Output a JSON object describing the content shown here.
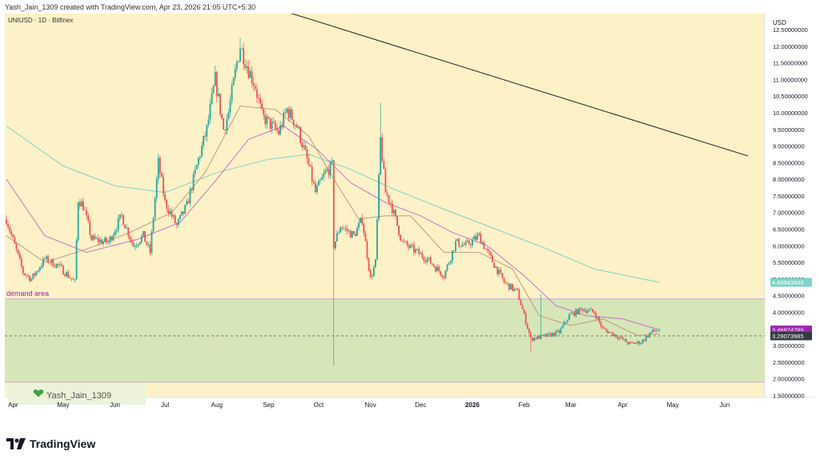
{
  "header": {
    "credit": "Yash_Jain_1309 created with TradingView.com, Apr 23, 2026 21:05 UTC+5:30"
  },
  "chart": {
    "symbol": "UNIUSD · 1D · Bitfinex",
    "currency": "USD",
    "zone_label": "demand area",
    "watermark": "Yash_Jain_1309",
    "colors": {
      "background": "#fdf1c7",
      "zone_fill": "#d6e6b8",
      "up": "#26a69a",
      "down": "#ef5350",
      "ma_fast": "#c49a7a",
      "ma_mid": "#c773c9",
      "ma_slow": "#7fd3c8",
      "trendline": "#333333",
      "zone_border": "#c9a7d8"
    }
  },
  "chart_data": {
    "type": "candlestick",
    "y_range": [
      1.3,
      12.8
    ],
    "x_range": [
      "2025-03-28",
      "2026-06-15"
    ],
    "x_ticks": [
      {
        "date": "2025-04-01",
        "label": "Apr"
      },
      {
        "date": "2025-05-01",
        "label": "May"
      },
      {
        "date": "2025-06-01",
        "label": "Jun"
      },
      {
        "date": "2025-07-01",
        "label": "Jul"
      },
      {
        "date": "2025-08-01",
        "label": "Aug"
      },
      {
        "date": "2025-09-01",
        "label": "Sep"
      },
      {
        "date": "2025-10-01",
        "label": "Oct"
      },
      {
        "date": "2025-11-01",
        "label": "Nov"
      },
      {
        "date": "2025-12-01",
        "label": "Dec"
      },
      {
        "date": "2026-01-01",
        "label": "2026"
      },
      {
        "date": "2026-02-01",
        "label": "Feb"
      },
      {
        "date": "2026-03-01",
        "label": "Mar"
      },
      {
        "date": "2026-04-01",
        "label": "Apr"
      },
      {
        "date": "2026-05-01",
        "label": "May"
      },
      {
        "date": "2026-06-01",
        "label": "Jun"
      }
    ],
    "y_ticks": [
      "12.50000000",
      "12.00000000",
      "11.50000000",
      "11.00000000",
      "10.50000000",
      "10.00000000",
      "9.50000000",
      "9.00000000",
      "8.50000000",
      "8.00000000",
      "7.50000000",
      "7.00000000",
      "6.50000000",
      "6.00000000",
      "5.50000000",
      "5.00000000",
      "4.50000000",
      "4.00000000",
      "3.50000000",
      "3.00000000",
      "2.50000000",
      "2.00000000",
      "1.50000000"
    ],
    "y_tick_values": [
      12.5,
      12,
      11.5,
      11,
      10.5,
      10,
      9.5,
      9,
      8.5,
      8,
      7.5,
      7,
      6.5,
      6,
      5.5,
      5,
      4.5,
      4,
      3.5,
      3,
      2.5,
      2,
      1.5
    ],
    "anchors": [
      [
        "2025-03-28",
        6.8
      ],
      [
        "2025-04-07",
        5.2
      ],
      [
        "2025-04-12",
        5.0
      ],
      [
        "2025-04-20",
        5.6
      ],
      [
        "2025-04-28",
        5.4
      ],
      [
        "2025-05-08",
        4.9
      ],
      [
        "2025-05-10",
        7.4
      ],
      [
        "2025-05-13",
        7.2
      ],
      [
        "2025-05-18",
        6.2
      ],
      [
        "2025-05-28",
        6.1
      ],
      [
        "2025-06-05",
        6.9
      ],
      [
        "2025-06-12",
        6.0
      ],
      [
        "2025-06-18",
        6.3
      ],
      [
        "2025-06-22",
        5.8
      ],
      [
        "2025-06-27",
        8.5
      ],
      [
        "2025-07-01",
        7.3
      ],
      [
        "2025-07-08",
        6.6
      ],
      [
        "2025-07-14",
        7.2
      ],
      [
        "2025-07-21",
        8.6
      ],
      [
        "2025-07-26",
        9.5
      ],
      [
        "2025-07-31",
        11.0
      ],
      [
        "2025-08-05",
        9.5
      ],
      [
        "2025-08-08",
        10.0
      ],
      [
        "2025-08-13",
        11.5
      ],
      [
        "2025-08-15",
        12.0
      ],
      [
        "2025-08-20",
        11.3
      ],
      [
        "2025-08-24",
        10.8
      ],
      [
        "2025-08-28",
        9.9
      ],
      [
        "2025-09-07",
        9.4
      ],
      [
        "2025-09-12",
        10.1
      ],
      [
        "2025-09-18",
        9.6
      ],
      [
        "2025-09-25",
        8.4
      ],
      [
        "2025-09-29",
        7.6
      ],
      [
        "2025-10-05",
        8.2
      ],
      [
        "2025-10-09",
        8.4
      ],
      [
        "2025-10-10",
        6.0
      ],
      [
        "2025-10-14",
        6.6
      ],
      [
        "2025-10-22",
        6.3
      ],
      [
        "2025-10-27",
        6.8
      ],
      [
        "2025-11-01",
        5.0
      ],
      [
        "2025-11-04",
        5.5
      ],
      [
        "2025-11-07",
        9.2
      ],
      [
        "2025-11-10",
        7.6
      ],
      [
        "2025-11-13",
        7.3
      ],
      [
        "2025-11-20",
        6.1
      ],
      [
        "2025-11-26",
        5.9
      ],
      [
        "2025-12-05",
        5.6
      ],
      [
        "2025-12-15",
        5.1
      ],
      [
        "2025-12-22",
        6.1
      ],
      [
        "2025-12-28",
        6.0
      ],
      [
        "2026-01-05",
        6.3
      ],
      [
        "2026-01-10",
        5.8
      ],
      [
        "2026-01-20",
        4.9
      ],
      [
        "2026-01-28",
        4.6
      ],
      [
        "2026-02-01",
        3.9
      ],
      [
        "2026-02-05",
        3.2
      ],
      [
        "2026-02-15",
        3.3
      ],
      [
        "2026-02-22",
        3.4
      ],
      [
        "2026-02-28",
        3.9
      ],
      [
        "2026-03-08",
        4.1
      ],
      [
        "2026-03-15",
        4.0
      ],
      [
        "2026-03-20",
        3.5
      ],
      [
        "2026-03-28",
        3.3
      ],
      [
        "2026-04-05",
        3.05
      ],
      [
        "2026-04-12",
        3.1
      ],
      [
        "2026-04-18",
        3.4
      ],
      [
        "2026-04-23",
        3.47
      ]
    ],
    "wick_extremes": [
      {
        "date": "2025-10-10",
        "low": 2.4
      },
      {
        "date": "2025-11-07",
        "high": 10.3
      },
      {
        "date": "2026-02-05",
        "low": 2.8
      },
      {
        "date": "2026-02-11",
        "high": 4.55
      },
      {
        "date": "2025-08-15",
        "high": 12.25
      }
    ],
    "moving_averages": {
      "fast": [
        [
          "2025-03-28",
          6.3
        ],
        [
          "2025-04-20",
          5.5
        ],
        [
          "2025-05-15",
          5.9
        ],
        [
          "2025-06-10",
          6.4
        ],
        [
          "2025-07-05",
          7.0
        ],
        [
          "2025-07-25",
          8.2
        ],
        [
          "2025-08-15",
          10.2
        ],
        [
          "2025-09-05",
          10.1
        ],
        [
          "2025-09-25",
          9.3
        ],
        [
          "2025-10-10",
          8.0
        ],
        [
          "2025-10-25",
          6.8
        ],
        [
          "2025-11-10",
          6.9
        ],
        [
          "2025-11-25",
          6.9
        ],
        [
          "2025-12-15",
          5.8
        ],
        [
          "2026-01-05",
          5.8
        ],
        [
          "2026-01-25",
          5.3
        ],
        [
          "2026-02-10",
          3.9
        ],
        [
          "2026-03-01",
          3.6
        ],
        [
          "2026-03-20",
          3.8
        ],
        [
          "2026-04-10",
          3.3
        ],
        [
          "2026-04-23",
          3.35
        ]
      ],
      "mid": [
        [
          "2025-03-28",
          8.0
        ],
        [
          "2025-04-20",
          6.3
        ],
        [
          "2025-05-15",
          5.8
        ],
        [
          "2025-06-15",
          6.2
        ],
        [
          "2025-07-10",
          6.7
        ],
        [
          "2025-08-01",
          8.0
        ],
        [
          "2025-08-20",
          9.2
        ],
        [
          "2025-09-10",
          9.6
        ],
        [
          "2025-09-30",
          8.9
        ],
        [
          "2025-10-20",
          7.9
        ],
        [
          "2025-11-10",
          7.3
        ],
        [
          "2025-12-01",
          6.9
        ],
        [
          "2025-12-20",
          6.4
        ],
        [
          "2026-01-10",
          6.0
        ],
        [
          "2026-02-01",
          5.1
        ],
        [
          "2026-02-20",
          4.2
        ],
        [
          "2026-03-10",
          3.9
        ],
        [
          "2026-04-01",
          3.8
        ],
        [
          "2026-04-23",
          3.47
        ]
      ],
      "slow": [
        [
          "2025-03-28",
          9.6
        ],
        [
          "2025-05-01",
          8.4
        ],
        [
          "2025-06-01",
          7.8
        ],
        [
          "2025-07-01",
          7.6
        ],
        [
          "2025-08-01",
          8.2
        ],
        [
          "2025-09-01",
          8.6
        ],
        [
          "2025-09-25",
          8.75
        ],
        [
          "2025-10-20",
          8.3
        ],
        [
          "2025-11-15",
          7.7
        ],
        [
          "2025-12-15",
          7.1
        ],
        [
          "2026-01-15",
          6.5
        ],
        [
          "2026-02-15",
          5.9
        ],
        [
          "2026-03-15",
          5.3
        ],
        [
          "2026-04-23",
          4.9
        ]
      ]
    },
    "trendline": {
      "start": [
        "2025-09-01",
        13.2
      ],
      "end": [
        "2026-06-15",
        8.7
      ]
    },
    "demand_zone": {
      "top": 4.4,
      "bottom": 1.9
    },
    "reference_line": 3.29073985,
    "price_labels": [
      {
        "value": 4.89943946,
        "text": "4.89943946",
        "color": "#7fd3c8"
      },
      {
        "value": 3.46874789,
        "text": "3.46874789",
        "color": "#9c27b0"
      },
      {
        "value": 3.3006,
        "text": "3.30060000",
        "color": "#ef5350"
      },
      {
        "value": 3.29073985,
        "text": "3.29073985",
        "color": "#363a45"
      }
    ]
  },
  "footer": {
    "brand": "TradingView",
    "logo": "tradingview-logo-icon"
  }
}
